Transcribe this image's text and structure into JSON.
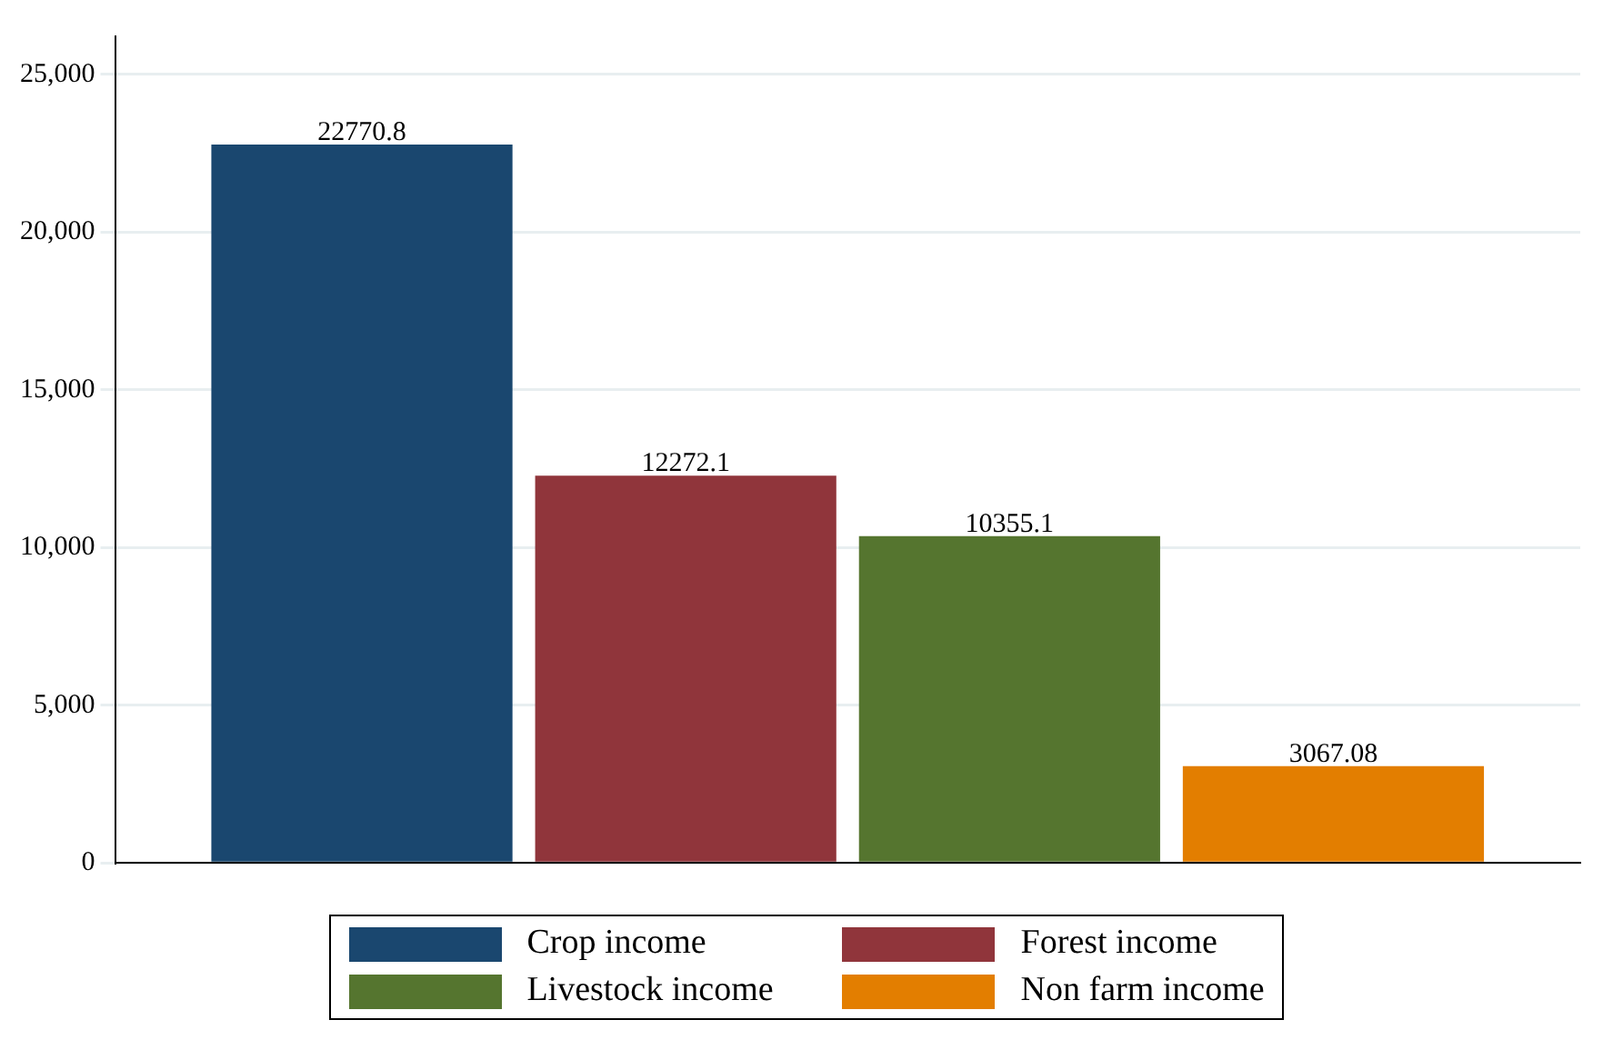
{
  "chart_data": {
    "type": "bar",
    "categories": [
      null
    ],
    "series": [
      {
        "name": "Crop income",
        "color": "#1a476f",
        "values": [
          22770.8
        ]
      },
      {
        "name": "Forest income",
        "color": "#90353b",
        "values": [
          12272.1
        ]
      },
      {
        "name": "Livestock income",
        "color": "#55752f",
        "values": [
          10355.1
        ]
      },
      {
        "name": "Non farm income",
        "color": "#e37e00",
        "values": [
          3067.08
        ]
      }
    ],
    "ylim": [
      0,
      26200
    ],
    "yticks": [
      {
        "value": 0,
        "label": "0"
      },
      {
        "value": 5000,
        "label": "5,000"
      },
      {
        "value": 10000,
        "label": "10,000"
      },
      {
        "value": 15000,
        "label": "15,000"
      },
      {
        "value": 20000,
        "label": "20,000"
      },
      {
        "value": 25000,
        "label": "25,000"
      }
    ],
    "grid": "y",
    "legend": "bottom",
    "data_labels": true
  }
}
